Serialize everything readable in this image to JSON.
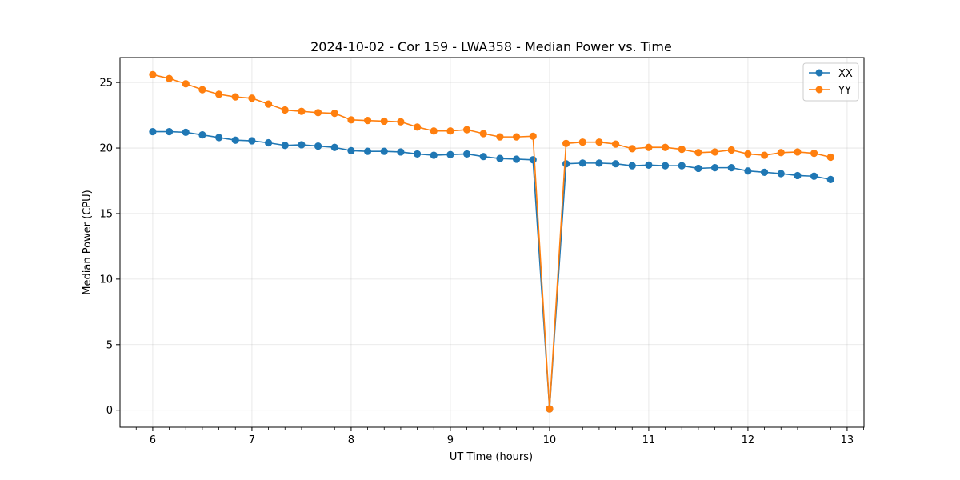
{
  "chart_data": {
    "type": "line",
    "title": "2024-10-02 - Cor 159 - LWA358 - Median Power vs. Time",
    "xlabel": "UT Time (hours)",
    "ylabel": "Median Power (CPU)",
    "xlim": [
      5.67,
      13.17
    ],
    "ylim": [
      -1.3,
      26.9
    ],
    "xticks": [
      6,
      7,
      8,
      9,
      10,
      11,
      12,
      13
    ],
    "yticks": [
      0,
      5,
      10,
      15,
      20,
      25
    ],
    "grid": true,
    "legend_position": "top-right",
    "x": [
      6.0,
      6.1667,
      6.3333,
      6.5,
      6.6667,
      6.8333,
      7.0,
      7.1667,
      7.3333,
      7.5,
      7.6667,
      7.8333,
      8.0,
      8.1667,
      8.3333,
      8.5,
      8.6667,
      8.8333,
      9.0,
      9.1667,
      9.3333,
      9.5,
      9.6667,
      9.8333,
      10.0,
      10.1667,
      10.3333,
      10.5,
      10.6667,
      10.8333,
      11.0,
      11.1667,
      11.3333,
      11.5,
      11.6667,
      11.8333,
      12.0,
      12.1667,
      12.3333,
      12.5,
      12.6667,
      12.8333
    ],
    "series": [
      {
        "name": "XX",
        "color": "#1f77b4",
        "values": [
          21.25,
          21.25,
          21.2,
          21.0,
          20.8,
          20.6,
          20.55,
          20.4,
          20.2,
          20.25,
          20.15,
          20.05,
          19.8,
          19.75,
          19.75,
          19.7,
          19.55,
          19.45,
          19.5,
          19.55,
          19.35,
          19.2,
          19.15,
          19.1,
          0.1,
          18.8,
          18.85,
          18.85,
          18.8,
          18.65,
          18.7,
          18.65,
          18.65,
          18.45,
          18.5,
          18.5,
          18.25,
          18.15,
          18.05,
          17.9,
          17.85,
          17.6
        ]
      },
      {
        "name": "YY",
        "color": "#ff7f0e",
        "values": [
          25.6,
          25.3,
          24.9,
          24.45,
          24.1,
          23.9,
          23.8,
          23.35,
          22.9,
          22.8,
          22.7,
          22.65,
          22.15,
          22.1,
          22.05,
          22.0,
          21.6,
          21.3,
          21.3,
          21.4,
          21.1,
          20.85,
          20.85,
          20.9,
          0.1,
          20.35,
          20.45,
          20.45,
          20.3,
          19.95,
          20.05,
          20.05,
          19.9,
          19.65,
          19.7,
          19.85,
          19.55,
          19.45,
          19.65,
          19.7,
          19.6,
          19.3
        ]
      }
    ]
  }
}
